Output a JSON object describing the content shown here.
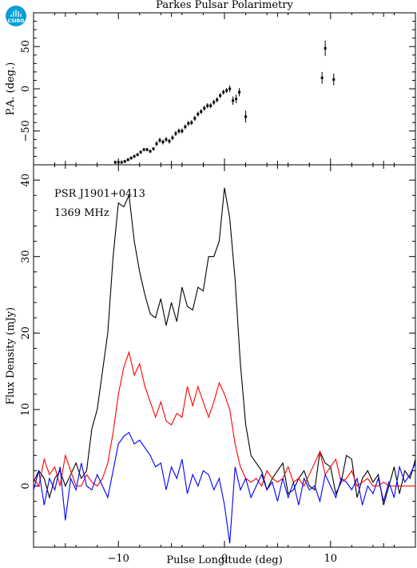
{
  "title": "Parkes Pulsar Polarimetry",
  "logo": {
    "text": "CSIRO",
    "color": "#0a9fd8"
  },
  "chart_data": [
    {
      "type": "scatter",
      "panel": "position-angle",
      "ylabel": "P.A. (deg.)",
      "xlim": [
        -18,
        18
      ],
      "ylim": [
        -90,
        90
      ],
      "yticks": [
        -50,
        0,
        50
      ],
      "xticks": [
        -10,
        0,
        10
      ],
      "error_bars": true,
      "points": [
        {
          "x": -10.3,
          "y": -87,
          "err": 2
        },
        {
          "x": -10.0,
          "y": -87,
          "err": 2
        },
        {
          "x": -9.7,
          "y": -87,
          "err": 2
        },
        {
          "x": -9.4,
          "y": -86,
          "err": 2
        },
        {
          "x": -9.1,
          "y": -84,
          "err": 2
        },
        {
          "x": -8.8,
          "y": -82,
          "err": 2
        },
        {
          "x": -8.5,
          "y": -80,
          "err": 2
        },
        {
          "x": -8.2,
          "y": -78,
          "err": 2
        },
        {
          "x": -7.9,
          "y": -75,
          "err": 2
        },
        {
          "x": -7.6,
          "y": -72,
          "err": 2
        },
        {
          "x": -7.3,
          "y": -72,
          "err": 2
        },
        {
          "x": -7.0,
          "y": -74,
          "err": 2
        },
        {
          "x": -6.7,
          "y": -71,
          "err": 2
        },
        {
          "x": -6.4,
          "y": -65,
          "err": 3
        },
        {
          "x": -6.1,
          "y": -61,
          "err": 3
        },
        {
          "x": -5.8,
          "y": -63,
          "err": 3
        },
        {
          "x": -5.5,
          "y": -60,
          "err": 3
        },
        {
          "x": -5.2,
          "y": -62,
          "err": 3
        },
        {
          "x": -4.9,
          "y": -58,
          "err": 3
        },
        {
          "x": -4.6,
          "y": -53,
          "err": 3
        },
        {
          "x": -4.3,
          "y": -50,
          "err": 3
        },
        {
          "x": -4.0,
          "y": -50,
          "err": 3
        },
        {
          "x": -3.7,
          "y": -45,
          "err": 3
        },
        {
          "x": -3.4,
          "y": -41,
          "err": 3
        },
        {
          "x": -3.1,
          "y": -40,
          "err": 3
        },
        {
          "x": -2.8,
          "y": -35,
          "err": 3
        },
        {
          "x": -2.5,
          "y": -30,
          "err": 3
        },
        {
          "x": -2.2,
          "y": -27,
          "err": 3
        },
        {
          "x": -1.9,
          "y": -23,
          "err": 3
        },
        {
          "x": -1.6,
          "y": -20,
          "err": 3
        },
        {
          "x": -1.3,
          "y": -20,
          "err": 3
        },
        {
          "x": -1.0,
          "y": -16,
          "err": 3
        },
        {
          "x": -0.7,
          "y": -13,
          "err": 3
        },
        {
          "x": -0.4,
          "y": -8,
          "err": 3
        },
        {
          "x": -0.1,
          "y": -4,
          "err": 3
        },
        {
          "x": 0.2,
          "y": -2,
          "err": 3
        },
        {
          "x": 0.5,
          "y": 0,
          "err": 4
        },
        {
          "x": 0.8,
          "y": -14,
          "err": 5
        },
        {
          "x": 1.1,
          "y": -12,
          "err": 5
        },
        {
          "x": 1.4,
          "y": -4,
          "err": 5
        },
        {
          "x": 2.0,
          "y": -33,
          "err": 7
        },
        {
          "x": 9.2,
          "y": 13,
          "err": 7
        },
        {
          "x": 9.5,
          "y": 48,
          "err": 9
        },
        {
          "x": 10.3,
          "y": 11,
          "err": 7
        }
      ]
    },
    {
      "type": "line",
      "panel": "flux",
      "annotations": [
        "PSR J1901+0413",
        "1369 MHz"
      ],
      "xlabel": "Pulse Longitude (deg)",
      "ylabel": "Flux Density (mJy)",
      "xlim": [
        -18,
        18
      ],
      "ylim": [
        -8,
        42
      ],
      "yticks": [
        0,
        10,
        20,
        30,
        40
      ],
      "xticks": [
        -10,
        0,
        10
      ],
      "x": [
        -18.0,
        -17.5,
        -17.0,
        -16.5,
        -16.0,
        -15.5,
        -15.0,
        -14.5,
        -14.0,
        -13.5,
        -13.0,
        -12.5,
        -12.0,
        -11.5,
        -11.0,
        -10.5,
        -10.0,
        -9.5,
        -9.0,
        -8.5,
        -8.0,
        -7.5,
        -7.0,
        -6.5,
        -6.0,
        -5.5,
        -5.0,
        -4.5,
        -4.0,
        -3.5,
        -3.0,
        -2.5,
        -2.0,
        -1.5,
        -1.0,
        -0.5,
        0.0,
        0.5,
        1.0,
        1.5,
        2.0,
        2.5,
        3.0,
        3.5,
        4.0,
        4.5,
        5.0,
        5.5,
        6.0,
        6.5,
        7.0,
        7.5,
        8.0,
        8.5,
        9.0,
        9.5,
        10.0,
        10.5,
        11.0,
        11.5,
        12.0,
        12.5,
        13.0,
        13.5,
        14.0,
        14.5,
        15.0,
        15.5,
        16.0,
        16.5,
        17.0,
        17.5,
        18.0
      ],
      "series": [
        {
          "name": "",
          "color": "#000000",
          "values": [
            0.5,
            2.0,
            1.0,
            -1.5,
            1.0,
            2.0,
            0.0,
            1.5,
            3.0,
            1.0,
            2.0,
            7.5,
            10.0,
            15.0,
            20.0,
            30.0,
            37.0,
            36.5,
            38.0,
            32.0,
            28.0,
            25.0,
            22.5,
            22.0,
            24.5,
            21.0,
            24.0,
            21.5,
            26.0,
            23.5,
            23.0,
            26.0,
            25.5,
            30.0,
            30.0,
            32.0,
            39.0,
            35.0,
            27.0,
            16.0,
            8.0,
            4.0,
            3.0,
            2.0,
            -0.5,
            1.0,
            2.0,
            3.0,
            -1.0,
            -0.5,
            1.0,
            2.0,
            0.0,
            -0.5,
            4.5,
            3.0,
            2.5,
            -1.0,
            0.5,
            4.0,
            3.5,
            -1.5,
            1.0,
            2.0,
            0.5,
            1.5,
            -2.5,
            0.0,
            2.5,
            -1.0,
            2.0,
            1.0,
            3.5
          ]
        },
        {
          "name": "",
          "color": "#ff0000",
          "values": [
            1.0,
            0.0,
            3.5,
            1.5,
            2.5,
            0.0,
            4.0,
            2.0,
            0.0,
            0.0,
            1.5,
            0.5,
            0.0,
            1.0,
            3.0,
            7.0,
            12.0,
            15.5,
            17.5,
            14.5,
            16.0,
            13.0,
            11.0,
            9.0,
            11.0,
            8.5,
            8.0,
            9.5,
            9.0,
            13.0,
            10.5,
            13.0,
            11.0,
            9.0,
            11.0,
            13.5,
            12.0,
            10.0,
            5.5,
            2.5,
            1.0,
            0.5,
            1.0,
            0.0,
            2.0,
            1.0,
            0.5,
            1.0,
            2.5,
            0.5,
            1.0,
            0.0,
            1.5,
            3.0,
            4.5,
            1.5,
            2.5,
            3.5,
            0.5,
            1.0,
            2.0,
            0.0,
            0.5,
            1.0,
            0.0,
            0.0,
            0.5,
            0.0,
            0.0,
            0.0,
            0.0,
            0.0,
            0.0
          ]
        },
        {
          "name": "",
          "color": "#0000ff",
          "values": [
            -0.5,
            2.0,
            -2.5,
            1.0,
            -0.5,
            2.5,
            -4.5,
            1.0,
            -0.5,
            3.0,
            0.0,
            -0.5,
            1.5,
            0.0,
            -1.5,
            2.0,
            5.5,
            6.5,
            7.0,
            5.5,
            6.0,
            5.0,
            4.0,
            2.5,
            3.0,
            -0.5,
            2.5,
            1.0,
            3.5,
            -1.0,
            1.5,
            0.0,
            2.0,
            1.5,
            -0.5,
            1.0,
            -2.5,
            -7.5,
            2.5,
            -0.5,
            1.0,
            -1.5,
            0.0,
            1.5,
            -0.5,
            0.5,
            -2.0,
            1.0,
            -1.5,
            0.5,
            -2.5,
            1.0,
            -0.5,
            0.0,
            -2.0,
            1.5,
            0.0,
            -1.5,
            1.0,
            0.5,
            -0.5,
            1.0,
            -2.5,
            0.0,
            -1.0,
            1.0,
            -2.0,
            0.5,
            -1.5,
            2.5,
            0.5,
            1.5,
            3.0
          ]
        }
      ]
    }
  ]
}
